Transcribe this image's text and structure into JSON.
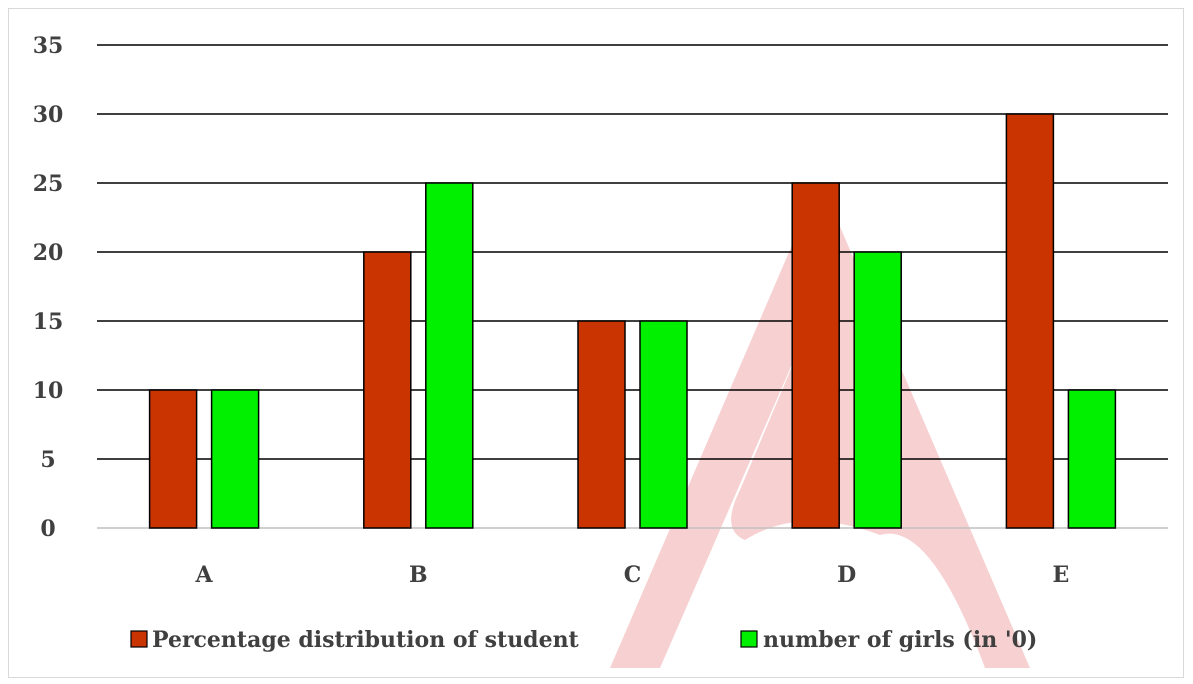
{
  "chart_data": {
    "type": "bar",
    "categories": [
      "A",
      "B",
      "C",
      "D",
      "E"
    ],
    "series": [
      {
        "name": "Percentage distribution of student",
        "color": "#C93400",
        "values": [
          10,
          20,
          15,
          25,
          30
        ]
      },
      {
        "name": "number of girls (in '0)",
        "color": "#00F000",
        "values": [
          10,
          25,
          15,
          20,
          10
        ]
      }
    ],
    "ylim": [
      0,
      35
    ],
    "yticks": [
      0,
      5,
      10,
      15,
      20,
      25,
      30,
      35
    ],
    "grid": true,
    "legend_position": "bottom",
    "watermark_color": "#F2B3B3"
  }
}
